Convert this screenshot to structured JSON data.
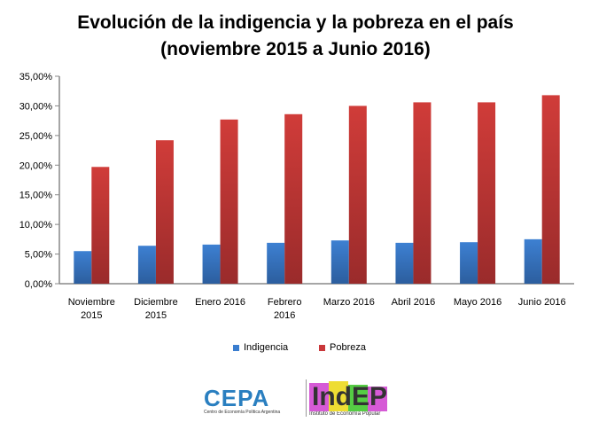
{
  "chart_data": {
    "type": "bar",
    "title_line1": "Evolución de la indigencia y la pobreza en el país",
    "title_line2": "(noviembre 2015 a Junio 2016)",
    "categories": [
      [
        "Noviembre",
        "2015"
      ],
      [
        "Diciembre",
        "2015"
      ],
      [
        "Enero 2016"
      ],
      [
        "Febrero",
        "2016"
      ],
      [
        "Marzo 2016"
      ],
      [
        "Abril 2016"
      ],
      [
        "Mayo 2016"
      ],
      [
        "Junio 2016"
      ]
    ],
    "series": [
      {
        "name": "Indigencia",
        "color": "#3a7dcf",
        "values": [
          5.5,
          6.4,
          6.6,
          6.9,
          7.3,
          6.9,
          7.0,
          7.5
        ]
      },
      {
        "name": "Pobreza",
        "color": "#c9373a",
        "values": [
          19.7,
          24.2,
          27.7,
          28.6,
          30.0,
          30.6,
          30.6,
          31.8
        ]
      }
    ],
    "ylim": [
      0,
      35
    ],
    "yticks": [
      "0,00%",
      "5,00%",
      "10,00%",
      "15,00%",
      "20,00%",
      "25,00%",
      "30,00%",
      "35,00%"
    ],
    "grid": false,
    "legend": "bottom"
  },
  "logos": {
    "cepa": "CEPA",
    "cepa_sub": "Centro de Economía Política Argentina",
    "indep": "IndEP",
    "indep_sub": "Instituto de Economía Popular"
  }
}
